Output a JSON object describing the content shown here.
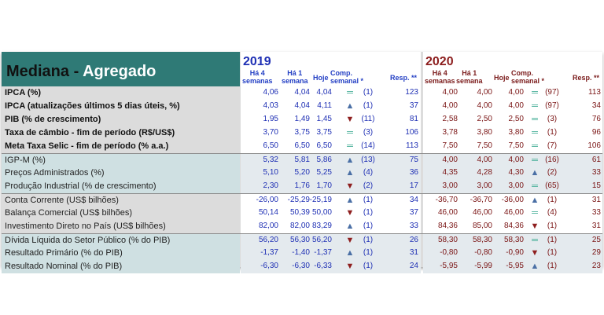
{
  "title": {
    "main": "Mediana - ",
    "accent": "Agregado"
  },
  "years": {
    "y2019": "2019",
    "y2020": "2020"
  },
  "headers": {
    "h4_1": "Há 4",
    "h4_2": "semanas",
    "h1_1": "Há 1",
    "h1_2": "semana",
    "hoje": "Hoje",
    "comp_1": "Comp.",
    "comp_2": "semanal *",
    "resp": "Resp. **"
  },
  "rows": [
    {
      "label": "IPCA (%)",
      "a": [
        "4,06",
        "4,04",
        "4,04",
        "eq",
        "(1)",
        "123"
      ],
      "b": [
        "4,00",
        "4,00",
        "4,00",
        "eq",
        "(97)",
        "113"
      ]
    },
    {
      "label": "IPCA (atualizações últimos 5 dias úteis, %)",
      "a": [
        "4,03",
        "4,04",
        "4,11",
        "up",
        "(1)",
        "37"
      ],
      "b": [
        "4,00",
        "4,00",
        "4,00",
        "eq",
        "(97)",
        "34"
      ]
    },
    {
      "label": "PIB (% de crescimento)",
      "a": [
        "1,95",
        "1,49",
        "1,45",
        "down",
        "(11)",
        "81"
      ],
      "b": [
        "2,58",
        "2,50",
        "2,50",
        "eq",
        "(3)",
        "76"
      ]
    },
    {
      "label": "Taxa de câmbio - fim de período (R$/US$)",
      "a": [
        "3,70",
        "3,75",
        "3,75",
        "eq",
        "(3)",
        "106"
      ],
      "b": [
        "3,78",
        "3,80",
        "3,80",
        "eq",
        "(1)",
        "96"
      ]
    },
    {
      "label": "Meta Taxa Selic - fim de período (% a.a.)",
      "a": [
        "6,50",
        "6,50",
        "6,50",
        "eq",
        "(14)",
        "113"
      ],
      "b": [
        "7,50",
        "7,50",
        "7,50",
        "eq",
        "(7)",
        "106"
      ]
    },
    {
      "label": "IGP-M (%)",
      "a": [
        "5,32",
        "5,81",
        "5,86",
        "up",
        "(13)",
        "75"
      ],
      "b": [
        "4,00",
        "4,00",
        "4,00",
        "eq",
        "(16)",
        "61"
      ]
    },
    {
      "label": "Preços Administrados (%)",
      "a": [
        "5,10",
        "5,20",
        "5,25",
        "up",
        "(4)",
        "36"
      ],
      "b": [
        "4,35",
        "4,28",
        "4,30",
        "up",
        "(2)",
        "33"
      ]
    },
    {
      "label": "Produção Industrial (% de crescimento)",
      "a": [
        "2,30",
        "1,76",
        "1,70",
        "down",
        "(2)",
        "17"
      ],
      "b": [
        "3,00",
        "3,00",
        "3,00",
        "eq",
        "(65)",
        "15"
      ]
    },
    {
      "label": "Conta Corrente (US$ bilhões)",
      "a": [
        "-26,00",
        "-25,29",
        "-25,19",
        "up",
        "(1)",
        "34"
      ],
      "b": [
        "-36,70",
        "-36,70",
        "-36,00",
        "up",
        "(1)",
        "31"
      ]
    },
    {
      "label": "Balança Comercial (US$ bilhões)",
      "a": [
        "50,14",
        "50,39",
        "50,00",
        "down",
        "(1)",
        "37"
      ],
      "b": [
        "46,00",
        "46,00",
        "46,00",
        "eq",
        "(4)",
        "33"
      ]
    },
    {
      "label": "Investimento Direto no País (US$ bilhões)",
      "a": [
        "82,00",
        "82,00",
        "83,29",
        "up",
        "(1)",
        "33"
      ],
      "b": [
        "84,36",
        "85,00",
        "84,36",
        "down",
        "(1)",
        "31"
      ]
    },
    {
      "label": "Dívida Líquida do Setor Público (% do PIB)",
      "a": [
        "56,20",
        "56,30",
        "56,20",
        "down",
        "(1)",
        "26"
      ],
      "b": [
        "58,30",
        "58,30",
        "58,30",
        "eq",
        "(1)",
        "25"
      ]
    },
    {
      "label": "Resultado Primário (% do PIB)",
      "a": [
        "-1,37",
        "-1,40",
        "-1,37",
        "up",
        "(1)",
        "31"
      ],
      "b": [
        "-0,80",
        "-0,80",
        "-0,90",
        "down",
        "(1)",
        "29"
      ]
    },
    {
      "label": "Resultado Nominal (% do PIB)",
      "a": [
        "-6,30",
        "-6,30",
        "-6,33",
        "down",
        "(1)",
        "24"
      ],
      "b": [
        "-5,95",
        "-5,99",
        "-5,95",
        "up",
        "(1)",
        "23"
      ]
    }
  ],
  "symbol_glyphs": {
    "eq": "═",
    "up": "▲",
    "down": "▼"
  },
  "colors": {
    "teal_title": "#2f7a76",
    "blue_2019": "#1e2fb4",
    "red_2020": "#7a1414",
    "equal": "#2ea58b",
    "up": "#4a6fa5",
    "down": "#8e1e1e"
  }
}
